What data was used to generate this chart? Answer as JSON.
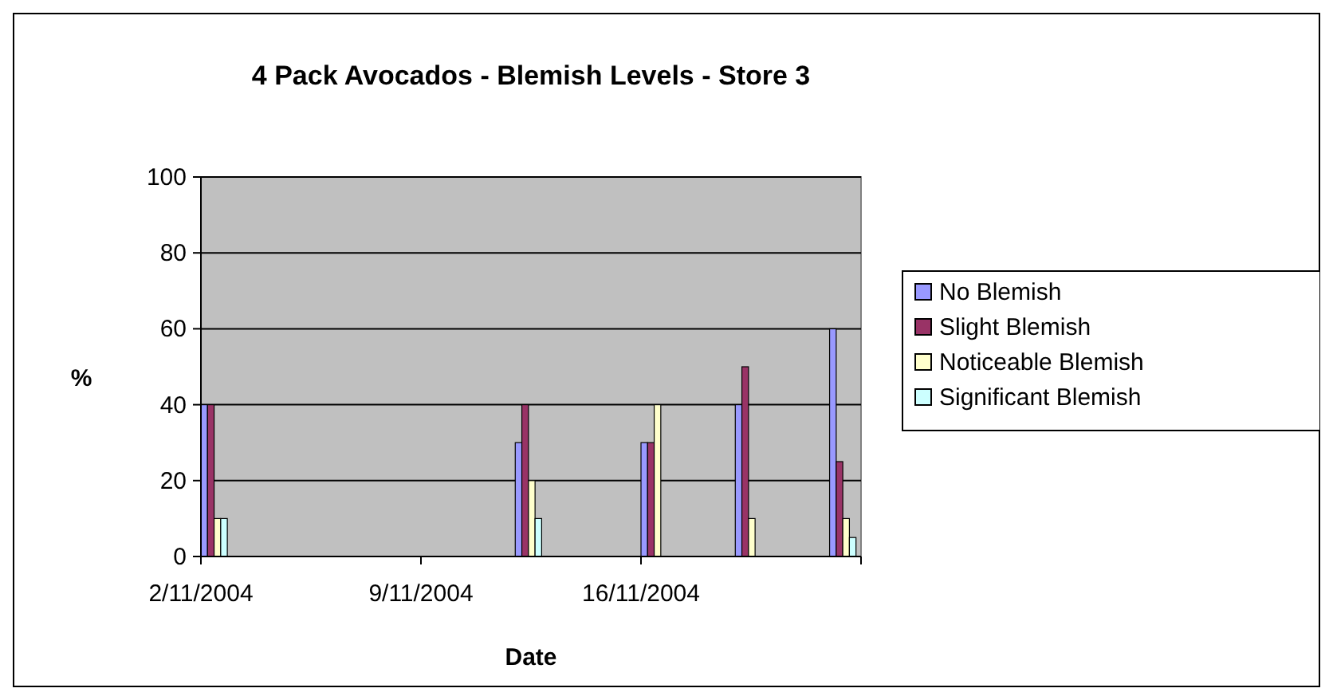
{
  "chart_data": {
    "type": "bar",
    "title": "4 Pack Avocados - Blemish Levels - Store 3",
    "xlabel": "Date",
    "ylabel": "%",
    "x": [
      "2004-11-02",
      "2004-11-12",
      "2004-11-16",
      "2004-11-19",
      "2004-11-22"
    ],
    "series": [
      {
        "name": "No Blemish",
        "color": "#9999ff",
        "values": [
          40,
          30,
          30,
          40,
          60
        ]
      },
      {
        "name": "Slight Blemish",
        "color": "#993366",
        "values": [
          40,
          40,
          30,
          50,
          25
        ]
      },
      {
        "name": "Noticeable Blemish",
        "color": "#ffffcc",
        "values": [
          10,
          20,
          40,
          10,
          10
        ]
      },
      {
        "name": "Significant Blemish",
        "color": "#ccffff",
        "values": [
          10,
          10,
          0,
          0,
          5
        ]
      }
    ],
    "xlim": [
      "2004-11-02",
      "2004-11-23"
    ],
    "xticks": [
      {
        "value": "2004-11-02",
        "label": "2/11/2004"
      },
      {
        "value": "2004-11-09",
        "label": "9/11/2004"
      },
      {
        "value": "2004-11-16",
        "label": "16/11/2004"
      }
    ],
    "ylim": [
      0,
      100
    ],
    "yticks": [
      0,
      20,
      40,
      60,
      80,
      100
    ],
    "grid": "y",
    "legend": "right"
  }
}
